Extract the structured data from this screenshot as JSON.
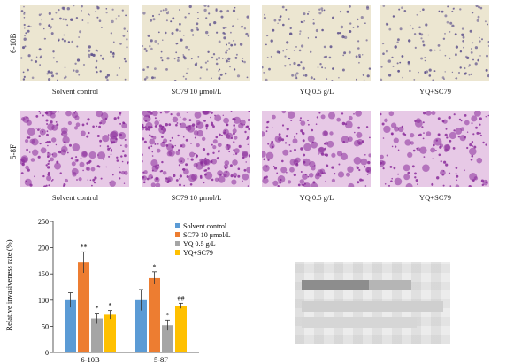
{
  "figure": {
    "row_labels": [
      "6-10B",
      "5-8F"
    ],
    "panel_captions": [
      "Solvent control",
      "SC79 10 μmol/L",
      "YQ 0.5 g/L",
      "YQ+SC79"
    ],
    "stain_colors": {
      "light_bg": "#ece6d1",
      "light_cell": "#5a4d8a",
      "dark_bg": "#e7c9e6",
      "dark_cell": "#8a2b9a"
    }
  },
  "chart_data": {
    "type": "bar",
    "categories": [
      "6-10B",
      "5-8F"
    ],
    "series": [
      {
        "name": "Solvent control",
        "color": "#5b9bd5",
        "values": [
          100,
          100
        ],
        "errors": [
          14,
          20
        ],
        "marks": [
          "",
          ""
        ]
      },
      {
        "name": "SC79 10 μmol/L",
        "color": "#ed7d31",
        "values": [
          172,
          142
        ],
        "errors": [
          20,
          12
        ],
        "marks": [
          "**",
          "*"
        ]
      },
      {
        "name": "YQ 0.5 g/L",
        "color": "#a5a5a5",
        "values": [
          65,
          52
        ],
        "errors": [
          10,
          10
        ],
        "marks": [
          "*",
          "*"
        ]
      },
      {
        "name": "YQ+SC79",
        "color": "#ffc000",
        "values": [
          72,
          89
        ],
        "errors": [
          8,
          5
        ],
        "marks": [
          "*",
          "##"
        ]
      }
    ],
    "ylabel": "Relative invasiveness rate (%)",
    "ylim": [
      0,
      250
    ],
    "yticks": [
      0,
      50,
      100,
      150,
      200,
      250
    ],
    "legend_position": "top-right"
  }
}
